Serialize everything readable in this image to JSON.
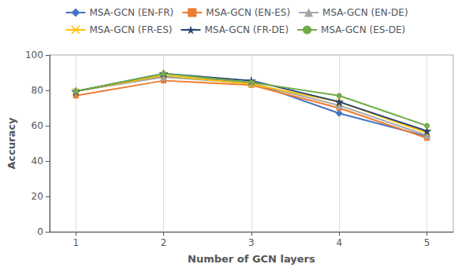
{
  "chart_data": {
    "type": "line",
    "xlabel": "Number of GCN layers",
    "ylabel": "Accuracy",
    "x": [
      1,
      2,
      3,
      4,
      5
    ],
    "series": [
      {
        "name": "MSA-GCN (EN-FR)",
        "color": "#4472C4",
        "marker": "diamond",
        "values": [
          79.5,
          88.0,
          84.5,
          67.0,
          54.0
        ]
      },
      {
        "name": "MSA-GCN (EN-ES)",
        "color": "#ED7D31",
        "marker": "square",
        "values": [
          77.0,
          85.5,
          83.0,
          70.0,
          53.0
        ]
      },
      {
        "name": "MSA-GCN (EN-DE)",
        "color": "#A5A5A5",
        "marker": "triangle",
        "values": [
          79.5,
          87.5,
          84.0,
          71.5,
          54.5
        ]
      },
      {
        "name": "MSA-GCN (FR-ES)",
        "color": "#FFC000",
        "marker": "x",
        "values": [
          79.5,
          88.5,
          83.5,
          73.5,
          56.0
        ]
      },
      {
        "name": "MSA-GCN (FR-DE)",
        "color": "#264478",
        "marker": "star",
        "values": [
          79.5,
          89.5,
          85.5,
          73.5,
          57.0
        ]
      },
      {
        "name": "MSA-GCN (ES-DE)",
        "color": "#70AD47",
        "marker": "circle",
        "values": [
          79.5,
          89.5,
          84.5,
          77.0,
          60.0
        ]
      }
    ],
    "xlim": [
      0.7,
      5.3
    ],
    "xticks": [
      1,
      2,
      3,
      4,
      5
    ],
    "ylim": [
      0,
      100
    ],
    "yticks": [
      0,
      20,
      40,
      60,
      80,
      100
    ],
    "grid": "x",
    "legend": "top"
  }
}
